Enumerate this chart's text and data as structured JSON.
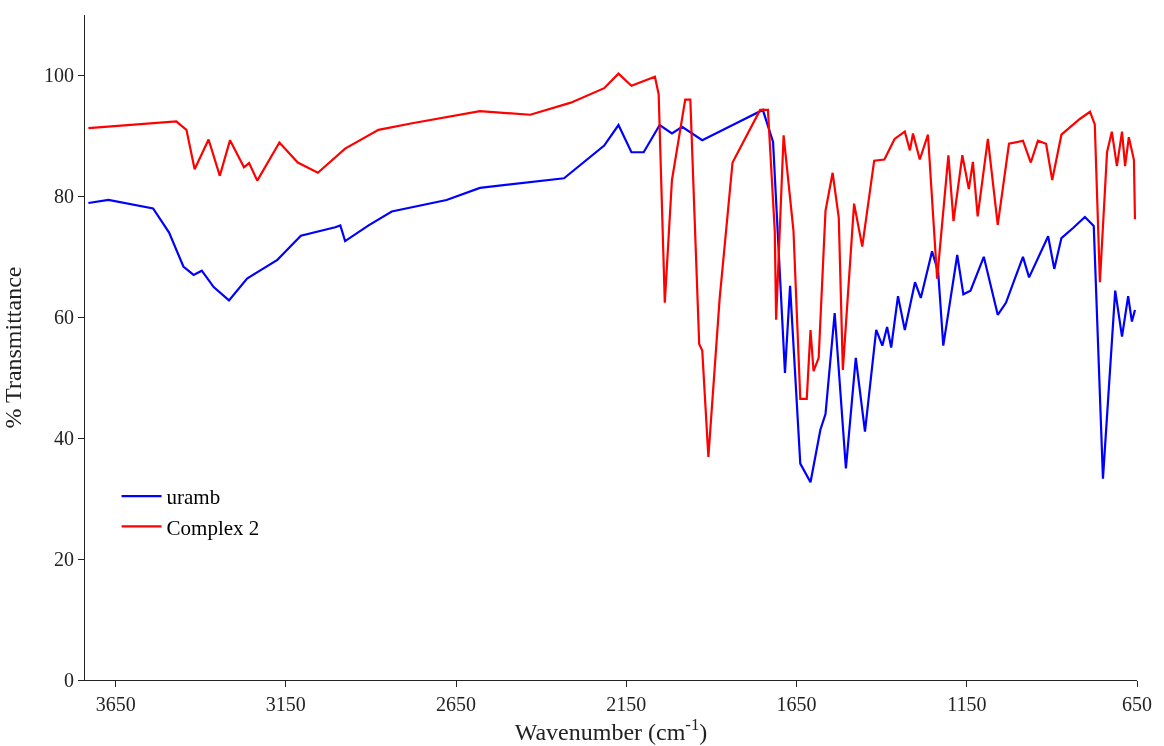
{
  "chart_data": {
    "type": "line",
    "xlabel": "Wavenumber (cm$^{-1}$)",
    "ylabel": "% Transmittance",
    "xlim": [
      3740,
      650
    ],
    "xticks": [
      3650,
      3150,
      2650,
      2150,
      1650,
      1150,
      650
    ],
    "ylim": [
      0,
      110
    ],
    "yticks": [
      0,
      20,
      40,
      60,
      80,
      100
    ],
    "legend": "bottom left",
    "marker": "none",
    "line_style": "solid",
    "series": [
      {
        "name": "uramb",
        "color": "#0000ff",
        "x": [
          3730,
          3671,
          3540,
          3493,
          3451,
          3421,
          3397,
          3362,
          3317,
          3264,
          3175,
          3106,
          3005,
          2990,
          2976,
          2907,
          2839,
          2678,
          2580,
          2333,
          2215,
          2173,
          2135,
          2099,
          2052,
          2016,
          1986,
          1927,
          1817,
          1749,
          1719,
          1684,
          1669,
          1639,
          1609,
          1580,
          1565,
          1538,
          1505,
          1476,
          1449,
          1416,
          1398,
          1384,
          1372,
          1352,
          1332,
          1302,
          1285,
          1252,
          1234,
          1219,
          1178,
          1160,
          1139,
          1100,
          1059,
          1035,
          985,
          967,
          911,
          893,
          872,
          837,
          803,
          777,
          750,
          714,
          694,
          676,
          665,
          656
        ],
        "values": [
          78.9,
          79.4,
          78.0,
          74.0,
          68.4,
          67.0,
          67.7,
          65.0,
          62.8,
          66.4,
          69.5,
          73.5,
          74.9,
          75.2,
          72.6,
          75.2,
          77.5,
          79.4,
          81.4,
          83.0,
          88.4,
          91.8,
          87.3,
          87.3,
          91.8,
          90.4,
          91.5,
          89.3,
          92.4,
          94.3,
          89.0,
          50.8,
          65.2,
          35.8,
          32.7,
          41.4,
          44.0,
          60.7,
          35.0,
          53.3,
          41.1,
          57.9,
          55.3,
          58.4,
          55.0,
          63.5,
          57.9,
          65.8,
          63.2,
          70.9,
          67.5,
          55.3,
          70.3,
          63.8,
          64.4,
          70.0,
          60.4,
          62.4,
          70.0,
          66.6,
          73.4,
          68.0,
          73.1,
          74.8,
          76.6,
          75.1,
          33.3,
          64.4,
          56.8,
          63.5,
          59.3,
          61.2
        ]
      },
      {
        "name": "Complex 2",
        "color": "#ff0000",
        "x": [
          3730,
          3472,
          3442,
          3418,
          3377,
          3344,
          3314,
          3273,
          3258,
          3234,
          3169,
          3115,
          3056,
          2976,
          2878,
          2779,
          2580,
          2432,
          2313,
          2215,
          2173,
          2135,
          2066,
          2055,
          2037,
          2016,
          1977,
          1962,
          1936,
          1927,
          1909,
          1876,
          1838,
          1757,
          1734,
          1714,
          1710,
          1688,
          1659,
          1639,
          1620,
          1609,
          1600,
          1585,
          1565,
          1544,
          1526,
          1514,
          1481,
          1457,
          1422,
          1392,
          1362,
          1332,
          1317,
          1308,
          1288,
          1264,
          1237,
          1204,
          1189,
          1163,
          1144,
          1132,
          1118,
          1088,
          1059,
          1026,
          985,
          962,
          941,
          917,
          899,
          872,
          818,
          788,
          774,
          759,
          738,
          724,
          709,
          694,
          685,
          674,
          659,
          656
        ],
        "values": [
          91.3,
          92.4,
          91.0,
          84.5,
          89.4,
          83.4,
          89.3,
          84.8,
          85.5,
          82.6,
          88.9,
          85.6,
          83.9,
          87.9,
          91.0,
          92.1,
          94.1,
          93.5,
          95.5,
          97.9,
          100.3,
          98.3,
          99.8,
          96.9,
          62.4,
          82.7,
          96.0,
          96.0,
          55.6,
          54.5,
          36.9,
          63.0,
          85.6,
          94.3,
          94.3,
          74.3,
          59.6,
          90.1,
          74.3,
          46.5,
          46.5,
          57.9,
          51.1,
          53.3,
          77.6,
          83.9,
          76.5,
          51.3,
          78.8,
          71.7,
          85.9,
          86.1,
          89.5,
          90.7,
          87.6,
          90.4,
          86.1,
          90.2,
          66.4,
          86.8,
          75.9,
          86.8,
          81.2,
          85.7,
          76.7,
          89.5,
          75.3,
          88.7,
          89.2,
          85.6,
          89.2,
          88.7,
          82.7,
          90.2,
          92.8,
          94.0,
          91.9,
          65.8,
          87.3,
          90.7,
          85.0,
          90.7,
          85.0,
          89.8,
          86.0,
          76.2
        ]
      }
    ]
  }
}
